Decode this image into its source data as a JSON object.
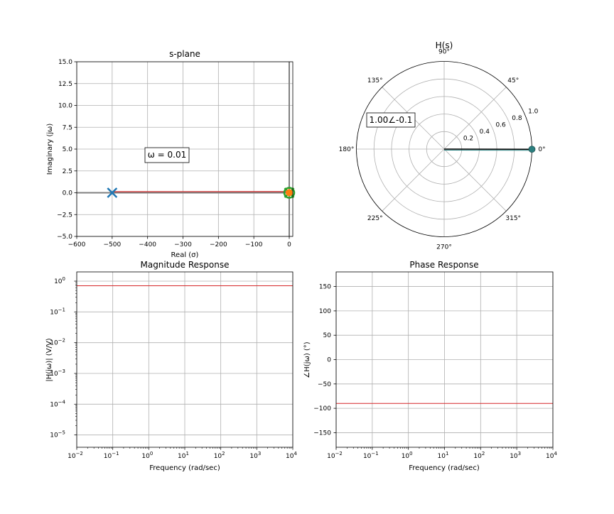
{
  "chart_data": [
    {
      "type": "scatter",
      "title": "s-plane",
      "xlabel": "Real (σ)",
      "ylabel": "Imaginary (jω)",
      "xlim": [
        -600,
        10
      ],
      "ylim": [
        -5,
        15
      ],
      "xticks": [
        "−600",
        "−500",
        "−400",
        "−300",
        "−200",
        "−100",
        "0"
      ],
      "xtick_values": [
        -600,
        -500,
        -400,
        -300,
        -200,
        -100,
        0
      ],
      "yticks": [
        "−5.0",
        "−2.5",
        "0.0",
        "2.5",
        "5.0",
        "7.5",
        "10.0",
        "12.5",
        "15.0"
      ],
      "ytick_values": [
        -5,
        -2.5,
        0,
        2.5,
        5,
        7.5,
        10,
        12.5,
        15
      ],
      "grid": true,
      "poles": [
        {
          "x": -500,
          "y": 0
        },
        {
          "x": 0,
          "y": 0
        }
      ],
      "zeros": [
        {
          "x": 0,
          "y": 0
        }
      ],
      "test_point": {
        "x": 0,
        "y": 0.01
      },
      "pole_vector": {
        "x1": -500,
        "y1": 0,
        "x2": 0,
        "y2": 0.01
      },
      "annotation": "ω = 0.01",
      "colors": {
        "pole": "#1f77b4",
        "zero": "#2ca02c",
        "test": "#ff7f0e",
        "vector": "#d62728",
        "axis": "#808080"
      }
    },
    {
      "type": "polar",
      "title": "H(s)",
      "rticks": [
        "0.2",
        "0.4",
        "0.6",
        "0.8",
        "1.0"
      ],
      "rtick_values": [
        0.2,
        0.4,
        0.6,
        0.8,
        1.0
      ],
      "angle_labels": [
        "0°",
        "45°",
        "90°",
        "135°",
        "180°",
        "225°",
        "270°",
        "315°"
      ],
      "angle_values": [
        0,
        45,
        90,
        135,
        180,
        225,
        270,
        315
      ],
      "rmax": 1.0,
      "value": {
        "magnitude": 1.0,
        "angle_deg": -0.1
      },
      "annotation": "1.00∠-0.1",
      "colors": {
        "vector": "#000000",
        "marker": "#2a7f7f"
      }
    },
    {
      "type": "line",
      "title": "Magnitude Response",
      "xlabel": "Frequency (rad/sec)",
      "ylabel": "|H(jω)| (V/V)",
      "xscale": "log",
      "yscale": "log",
      "xlim_exp": [
        -2,
        4
      ],
      "ylim_exp": [
        -5.4,
        0.3
      ],
      "xtick_exps": [
        "−2",
        "−1",
        "0",
        "1",
        "2",
        "3",
        "4"
      ],
      "ytick_exps": [
        "−5",
        "−4",
        "−3",
        "−2",
        "−1",
        "0"
      ],
      "tick_base": "10",
      "grid": true,
      "series": [
        {
          "x": [
            0.01,
            10000
          ],
          "y": [
            0.707,
            0.707
          ],
          "color": "#d62728"
        }
      ]
    },
    {
      "type": "line",
      "title": "Phase Response",
      "xlabel": "Frequency (rad/sec)",
      "ylabel": "∠H(jω) (°)",
      "xscale": "log",
      "xlim_exp": [
        -2,
        4
      ],
      "ylim": [
        -180,
        180
      ],
      "xtick_exps": [
        "−2",
        "−1",
        "0",
        "1",
        "2",
        "3",
        "4"
      ],
      "tick_base": "10",
      "yticks": [
        "−150",
        "−100",
        "−50",
        "0",
        "50",
        "100",
        "150"
      ],
      "ytick_values": [
        -150,
        -100,
        -50,
        0,
        50,
        100,
        150
      ],
      "grid": true,
      "series": [
        {
          "x": [
            0.01,
            10000
          ],
          "y": [
            -90,
            -90
          ],
          "color": "#d62728"
        }
      ]
    }
  ]
}
